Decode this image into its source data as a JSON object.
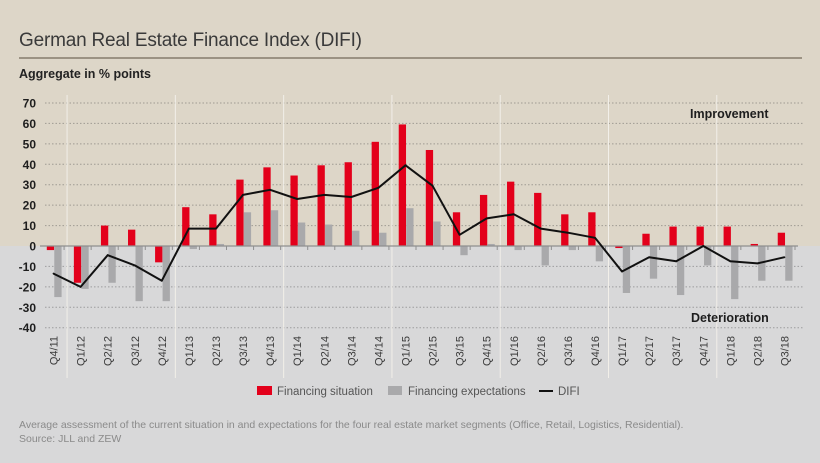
{
  "header": {
    "title": "German Real Estate Finance Index (DIFI)",
    "subtitle": "Aggregate in % points"
  },
  "colors": {
    "financing_situation": "#e3001b",
    "financing_expectations": "#a9a9ab",
    "difi": "#111111",
    "background_positive": "#ddd6c8",
    "background_negative": "#d8d8d9"
  },
  "chart_data": {
    "type": "bar",
    "title": "German Real Estate Finance Index (DIFI)",
    "ylabel": "Aggregate in % points",
    "xlabel": "",
    "ylim": [
      -40,
      70
    ],
    "yticks": [
      70,
      60,
      50,
      40,
      30,
      20,
      10,
      0,
      -10,
      -20,
      -30,
      -40
    ],
    "grid": true,
    "legend_position": "bottom-center",
    "categories": [
      "Q4/11",
      "Q1/12",
      "Q2/12",
      "Q3/12",
      "Q4/12",
      "Q1/13",
      "Q2/13",
      "Q3/13",
      "Q4/13",
      "Q1/14",
      "Q2/14",
      "Q3/14",
      "Q4/14",
      "Q1/15",
      "Q2/15",
      "Q3/15",
      "Q4/15",
      "Q1/16",
      "Q2/16",
      "Q3/16",
      "Q4/16",
      "Q1/17",
      "Q2/17",
      "Q3/17",
      "Q4/17",
      "Q1/18",
      "Q2/18",
      "Q3/18"
    ],
    "series": [
      {
        "name": "Financing situation",
        "type": "bar",
        "values": [
          -2,
          -18,
          10,
          8,
          -8,
          19,
          15.5,
          32.5,
          38.5,
          34.5,
          39.5,
          41,
          51,
          59.5,
          47,
          16.5,
          25,
          31.5,
          26,
          15.5,
          16.5,
          -1,
          6,
          9.5,
          9.5,
          9.5,
          1,
          6.5
        ]
      },
      {
        "name": "Financing expectations",
        "type": "bar",
        "values": [
          -25,
          -21,
          -18,
          -27,
          -27,
          -1.5,
          1,
          16.5,
          17.5,
          11.5,
          10.5,
          7.5,
          6.5,
          18.5,
          12,
          -4.5,
          1,
          -2,
          -9.5,
          -2,
          -7.5,
          -23,
          -16,
          -24,
          -9.5,
          -26,
          -17,
          -17
        ]
      },
      {
        "name": "DIFI",
        "type": "line",
        "values": [
          -13.5,
          -20,
          -4.5,
          -9.5,
          -17,
          8.5,
          8.5,
          25,
          27.5,
          23,
          25,
          24,
          28.5,
          39.5,
          29.5,
          5.5,
          13.5,
          15.5,
          8.5,
          6.5,
          4,
          -12.5,
          -5.5,
          -7.5,
          0,
          -7.5,
          -8.5,
          -5.5
        ]
      }
    ],
    "annotations": [
      "Improvement",
      "Deterioration"
    ]
  },
  "legend": {
    "items": [
      "Financing situation",
      "Financing expectations",
      "DIFI"
    ]
  },
  "footnote": {
    "line1": "Average assessment of the current situation in and expectations for the four real estate market segments (Office, Retail, Logistics, Residential).",
    "line2": "Source: JLL and ZEW"
  }
}
